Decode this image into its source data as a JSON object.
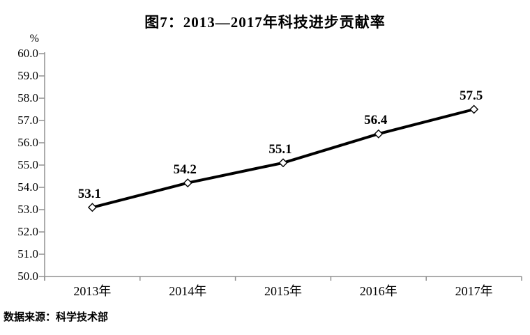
{
  "title": "图7：2013—2017年科技进步贡献率",
  "y_axis_unit": "%",
  "source_note": "数据来源：科学技术部",
  "colors": {
    "line": "#000000",
    "marker_fill": "#ffffff",
    "marker_stroke": "#000000",
    "axis": "#909090",
    "text": "#000000",
    "background": "#ffffff"
  },
  "chart_data": {
    "type": "line",
    "title": "图7：2013—2017年科技进步贡献率",
    "categories": [
      "2013年",
      "2014年",
      "2015年",
      "2016年",
      "2017年"
    ],
    "values": [
      53.1,
      54.2,
      55.1,
      56.4,
      57.5
    ],
    "value_labels": [
      "53.1",
      "54.2",
      "55.1",
      "56.4",
      "57.5"
    ],
    "xlabel": "",
    "ylabel": "%",
    "ylim": [
      50.0,
      60.0
    ],
    "ytick_step": 1.0,
    "ytick_labels": [
      "60.0",
      "59.0",
      "58.0",
      "57.0",
      "56.0",
      "55.0",
      "54.0",
      "53.0",
      "52.0",
      "51.0",
      "50.0"
    ],
    "grid": false,
    "legend_position": "none",
    "marker": "diamond-open",
    "source_note": "数据来源：科学技术部"
  }
}
